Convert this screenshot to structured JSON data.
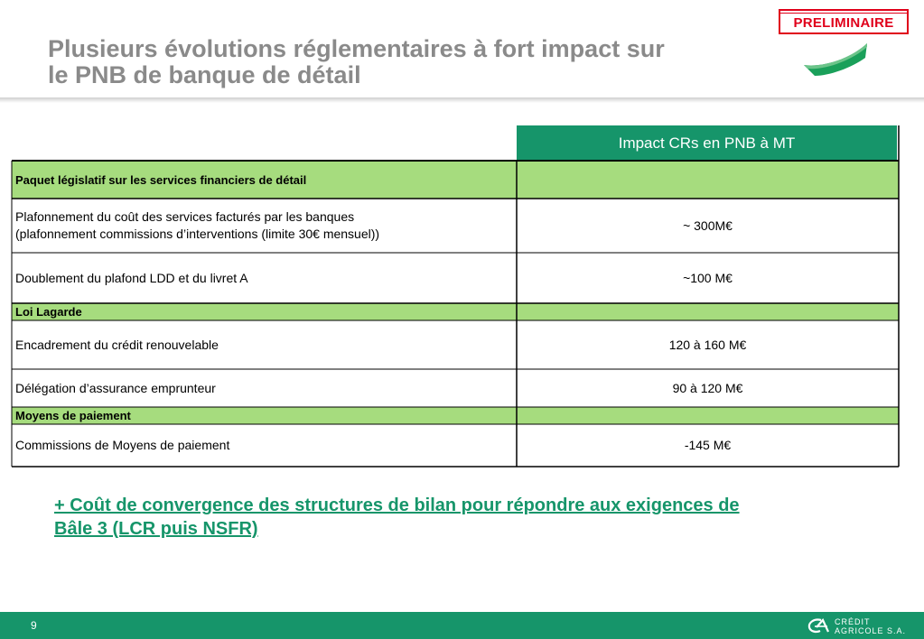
{
  "title": {
    "line1": "Plusieurs évolutions réglementaires à fort impact sur",
    "line2": "le PNB de banque de détail"
  },
  "stamp": "PRELIMINAIRE",
  "table": {
    "header": "Impact CRs en PNB à MT",
    "rows": [
      {
        "type": "section",
        "label": "Paquet législatif sur les services financiers de détail",
        "value": ""
      },
      {
        "type": "item",
        "label_line1": "Plafonnement du coût des services facturés par les banques",
        "label_line2": "(plafonnement commissions d’interventions (limite 30€ mensuel))",
        "value": "~ 300M€"
      },
      {
        "type": "item",
        "label": "Doublement du plafond LDD et du livret A",
        "value": "~100 M€"
      },
      {
        "type": "section",
        "label": "Loi Lagarde",
        "value": ""
      },
      {
        "type": "item",
        "label": "Encadrement du crédit renouvelable",
        "value": "120 à 160 M€"
      },
      {
        "type": "item",
        "label": "Délégation d’assurance emprunteur",
        "value": "90 à 120 M€"
      },
      {
        "type": "section",
        "label": "Moyens de paiement",
        "value": ""
      },
      {
        "type": "item",
        "label": "Commissions de Moyens de paiement",
        "value": "-145 M€"
      }
    ]
  },
  "note": {
    "line1": "+ Coût de convergence des structures de bilan pour répondre aux exigences de",
    "line2": "Bâle 3 (LCR puis NSFR)"
  },
  "footer": {
    "page_number": "9",
    "logo_line1": "CRÉDIT",
    "logo_line2": "AGRICOLE S.A.",
    "logo_icon": "credit-agricole-logo-icon"
  },
  "colors": {
    "brand_green": "#16956a",
    "section_green": "#a6dc7e",
    "title_gray": "#8a8a8a",
    "stamp_red": "#e0001a"
  }
}
